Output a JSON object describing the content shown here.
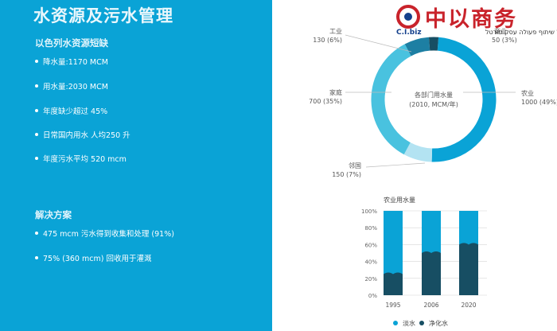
{
  "title": "水资源及污水管理",
  "shortage": {
    "heading": "以色列水资源短缺",
    "items": [
      "降水量:1170 MCM",
      "用水量:2030 MCM",
      "年度缺少超过 45%",
      "日常国内用水 人均250 升",
      "年度污水平均 520 mcm"
    ]
  },
  "solutions": {
    "heading": "解决方案",
    "items": [
      "475 mcm 污水得到收集和处理 (91%)",
      "75% (360 mcm) 回收用于灌溉"
    ]
  },
  "logo": {
    "brand": "中以商务",
    "tag": "C.I.biz",
    "subtitle": "סין וישראל שיתוף פעולה עסק פורטל"
  },
  "chart_data": [
    {
      "type": "pie",
      "center_label": [
        "各部门用水量",
        "(2010, MCM/年)"
      ],
      "slices": [
        {
          "name": "农业",
          "value": 1000,
          "pct": "49%",
          "color": "#0aa3d6"
        },
        {
          "name": "邻国",
          "value": 150,
          "pct": "7%",
          "color": "#b3e3f2"
        },
        {
          "name": "家庭",
          "value": 700,
          "pct": "35%",
          "color": "#49c2df"
        },
        {
          "name": "工业",
          "value": 130,
          "pct": "6%",
          "color": "#1d7fa3"
        },
        {
          "name": "商业",
          "value": 50,
          "pct": "3%",
          "color": "#174e63"
        }
      ]
    },
    {
      "type": "bar",
      "title": "农业用水量",
      "categories": [
        "1995",
        "2006",
        "2020"
      ],
      "series": [
        {
          "name": "淡水",
          "values": [
            75,
            50,
            40
          ],
          "color": "#0aa3d6"
        },
        {
          "name": "净化水",
          "values": [
            25,
            50,
            60
          ],
          "color": "#174e63"
        }
      ],
      "yticks": [
        "0%",
        "20%",
        "40%",
        "60%",
        "80%",
        "100%"
      ],
      "ylim": [
        0,
        100
      ],
      "legend": "bottom"
    }
  ]
}
